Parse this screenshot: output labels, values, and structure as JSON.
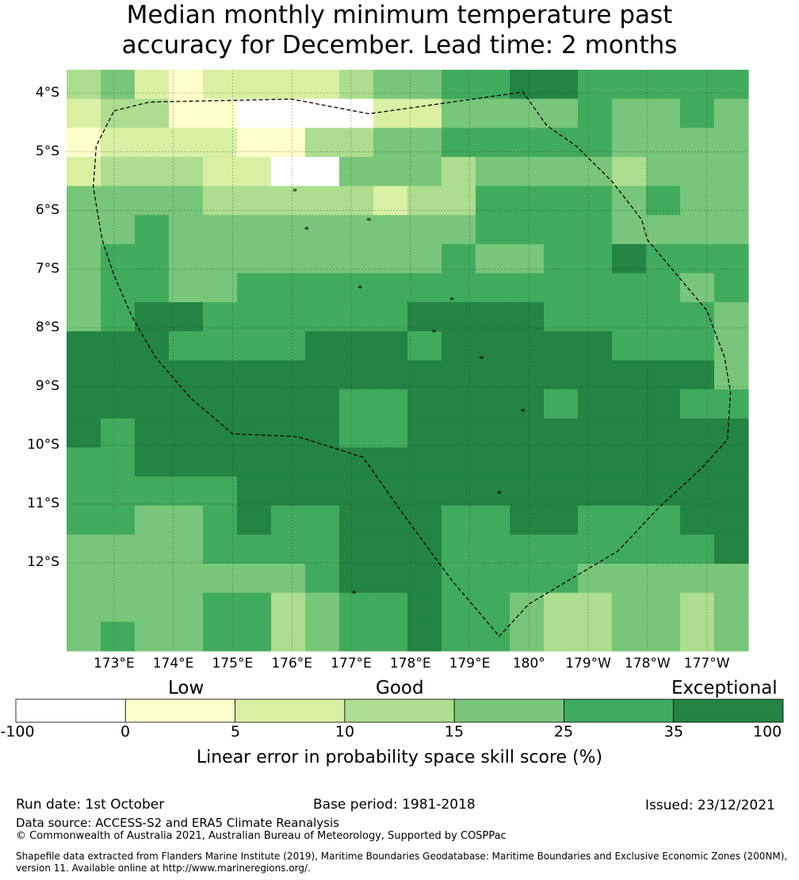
{
  "title": {
    "line1": "Median monthly minimum temperature past",
    "line2": "accuracy for December. Lead time: 2 months"
  },
  "colors": {
    "categories": [
      "#ffffff",
      "#ffffcc",
      "#d9f0a3",
      "#addd8e",
      "#78c679",
      "#41ab5d",
      "#238443"
    ],
    "gridline": "#333333",
    "border": "#000000"
  },
  "chart_data": {
    "type": "heatmap",
    "x_range": [
      172.2,
      183.7
    ],
    "y_range": [
      -13.5,
      -3.6
    ],
    "grid_note": "cell values are colour category indices 0-6 (0=-100..0, 1=0..5, 2=5..10, 3=10..15, 4=15..25, 5=25..35, 6=35..100)",
    "lat_ticks": [
      "4°S",
      "5°S",
      "6°S",
      "7°S",
      "8°S",
      "9°S",
      "10°S",
      "11°S",
      "12°S"
    ],
    "lat_values": [
      -4,
      -5,
      -6,
      -7,
      -8,
      -9,
      -10,
      -11,
      -12
    ],
    "lon_ticks": [
      "173°E",
      "174°E",
      "175°E",
      "176°E",
      "177°E",
      "178°E",
      "179°E",
      "180°",
      "179°W",
      "178°W",
      "177°W"
    ],
    "lon_values": [
      173,
      174,
      175,
      176,
      177,
      178,
      179,
      180,
      181,
      182,
      183
    ],
    "grid": [
      [
        3,
        4,
        2,
        1,
        2,
        2,
        2,
        2,
        3,
        4,
        4,
        5,
        5,
        6,
        6,
        5,
        5,
        5,
        5,
        5
      ],
      [
        2,
        3,
        3,
        1,
        1,
        0,
        0,
        0,
        0,
        2,
        2,
        4,
        4,
        4,
        4,
        5,
        4,
        4,
        5,
        4
      ],
      [
        1,
        2,
        2,
        2,
        2,
        1,
        1,
        3,
        3,
        4,
        4,
        5,
        5,
        5,
        5,
        5,
        4,
        4,
        4,
        4
      ],
      [
        2,
        3,
        3,
        3,
        2,
        2,
        0,
        0,
        4,
        4,
        4,
        3,
        4,
        4,
        4,
        4,
        3,
        4,
        4,
        4
      ],
      [
        4,
        4,
        4,
        4,
        3,
        3,
        3,
        3,
        3,
        2,
        3,
        3,
        5,
        5,
        5,
        5,
        4,
        5,
        4,
        4
      ],
      [
        4,
        4,
        5,
        4,
        4,
        4,
        4,
        4,
        4,
        4,
        4,
        4,
        5,
        5,
        5,
        5,
        4,
        4,
        4,
        4
      ],
      [
        4,
        5,
        5,
        4,
        4,
        4,
        4,
        4,
        4,
        4,
        4,
        5,
        4,
        4,
        5,
        5,
        6,
        5,
        5,
        5
      ],
      [
        4,
        5,
        5,
        4,
        4,
        5,
        5,
        5,
        5,
        5,
        5,
        5,
        5,
        5,
        5,
        5,
        5,
        5,
        4,
        5
      ],
      [
        4,
        5,
        6,
        6,
        5,
        5,
        5,
        5,
        5,
        5,
        6,
        6,
        6,
        6,
        5,
        5,
        5,
        5,
        5,
        4
      ],
      [
        6,
        6,
        6,
        5,
        5,
        5,
        5,
        6,
        6,
        6,
        5,
        6,
        6,
        6,
        6,
        6,
        5,
        5,
        5,
        4
      ],
      [
        6,
        6,
        6,
        6,
        6,
        6,
        6,
        6,
        6,
        6,
        6,
        6,
        6,
        6,
        6,
        6,
        6,
        6,
        6,
        4
      ],
      [
        6,
        6,
        6,
        6,
        6,
        6,
        6,
        6,
        5,
        5,
        6,
        6,
        6,
        6,
        5,
        6,
        6,
        6,
        5,
        5
      ],
      [
        6,
        5,
        6,
        6,
        6,
        6,
        6,
        6,
        5,
        5,
        6,
        6,
        6,
        6,
        6,
        6,
        6,
        6,
        6,
        6
      ],
      [
        5,
        5,
        6,
        6,
        6,
        6,
        6,
        6,
        6,
        6,
        6,
        6,
        6,
        6,
        6,
        6,
        6,
        6,
        6,
        6
      ],
      [
        5,
        5,
        5,
        5,
        5,
        6,
        6,
        6,
        6,
        6,
        6,
        6,
        6,
        6,
        6,
        6,
        6,
        6,
        6,
        6
      ],
      [
        5,
        5,
        4,
        4,
        5,
        6,
        5,
        5,
        6,
        6,
        6,
        5,
        5,
        6,
        6,
        5,
        5,
        5,
        6,
        6
      ],
      [
        4,
        4,
        4,
        4,
        5,
        5,
        5,
        5,
        6,
        6,
        6,
        5,
        5,
        5,
        5,
        5,
        5,
        5,
        5,
        6
      ],
      [
        4,
        4,
        4,
        4,
        4,
        4,
        4,
        5,
        6,
        6,
        6,
        5,
        5,
        5,
        5,
        4,
        4,
        4,
        4,
        4
      ],
      [
        4,
        4,
        4,
        4,
        5,
        5,
        3,
        4,
        5,
        5,
        6,
        5,
        5,
        4,
        3,
        3,
        4,
        4,
        3,
        4
      ],
      [
        4,
        5,
        4,
        4,
        5,
        5,
        3,
        4,
        5,
        5,
        6,
        5,
        5,
        4,
        3,
        3,
        4,
        4,
        3,
        4
      ]
    ],
    "eez_boundary_lonlat": [
      [
        173.0,
        -4.3
      ],
      [
        173.6,
        -4.15
      ],
      [
        176.0,
        -4.1
      ],
      [
        177.3,
        -4.35
      ],
      [
        179.9,
        -3.98
      ],
      [
        180.3,
        -4.55
      ],
      [
        180.8,
        -4.9
      ],
      [
        181.4,
        -5.5
      ],
      [
        181.9,
        -6.15
      ],
      [
        182.0,
        -6.5
      ],
      [
        182.5,
        -7.1
      ],
      [
        183.0,
        -7.7
      ],
      [
        183.3,
        -8.5
      ],
      [
        183.4,
        -9.1
      ],
      [
        183.35,
        -9.9
      ],
      [
        182.9,
        -10.4
      ],
      [
        182.2,
        -11.05
      ],
      [
        181.5,
        -11.8
      ],
      [
        180.0,
        -12.7
      ],
      [
        179.5,
        -13.25
      ],
      [
        178.7,
        -12.3
      ],
      [
        177.9,
        -11.2
      ],
      [
        177.2,
        -10.2
      ],
      [
        176.1,
        -9.85
      ],
      [
        175.0,
        -9.8
      ],
      [
        174.3,
        -9.2
      ],
      [
        173.7,
        -8.5
      ],
      [
        173.3,
        -7.8
      ],
      [
        173.0,
        -7.1
      ],
      [
        172.8,
        -6.5
      ],
      [
        172.65,
        -5.6
      ],
      [
        172.7,
        -4.9
      ],
      [
        173.0,
        -4.3
      ]
    ],
    "islands_lonlat": [
      [
        176.05,
        -5.65
      ],
      [
        176.25,
        -6.3
      ],
      [
        177.15,
        -7.3
      ],
      [
        177.3,
        -6.15
      ],
      [
        178.7,
        -7.5
      ],
      [
        178.4,
        -8.05
      ],
      [
        179.2,
        -8.5
      ],
      [
        179.9,
        -9.4
      ],
      [
        179.5,
        -10.8
      ],
      [
        177.05,
        -12.5
      ]
    ]
  },
  "legend": {
    "categories": [
      "Low",
      "Good",
      "Exceptional"
    ],
    "ticks": [
      "-100",
      "0",
      "5",
      "10",
      "15",
      "25",
      "35",
      "100"
    ],
    "title": "Linear error in probability space skill score (%)"
  },
  "footer": {
    "run_date": "Run date: 1st October",
    "base_period": "Base period: 1981-2018",
    "issued": "Issued: 23/12/2021",
    "data_source": "Data source: ACCESS-S2 and ERA5 Climate Reanalysis",
    "copyright": "© Commonwealth of Australia 2021, Australian Bureau of Meteorology, Supported by COSPPac",
    "shapefile_line1": "Shapefile data extracted from Flanders Marine Institute (2019), Maritime Boundaries Geodatabase: Maritime Boundaries and Exclusive Economic Zones (200NM),",
    "shapefile_line2": "version 11. Available online at http://www.marineregions.org/."
  }
}
